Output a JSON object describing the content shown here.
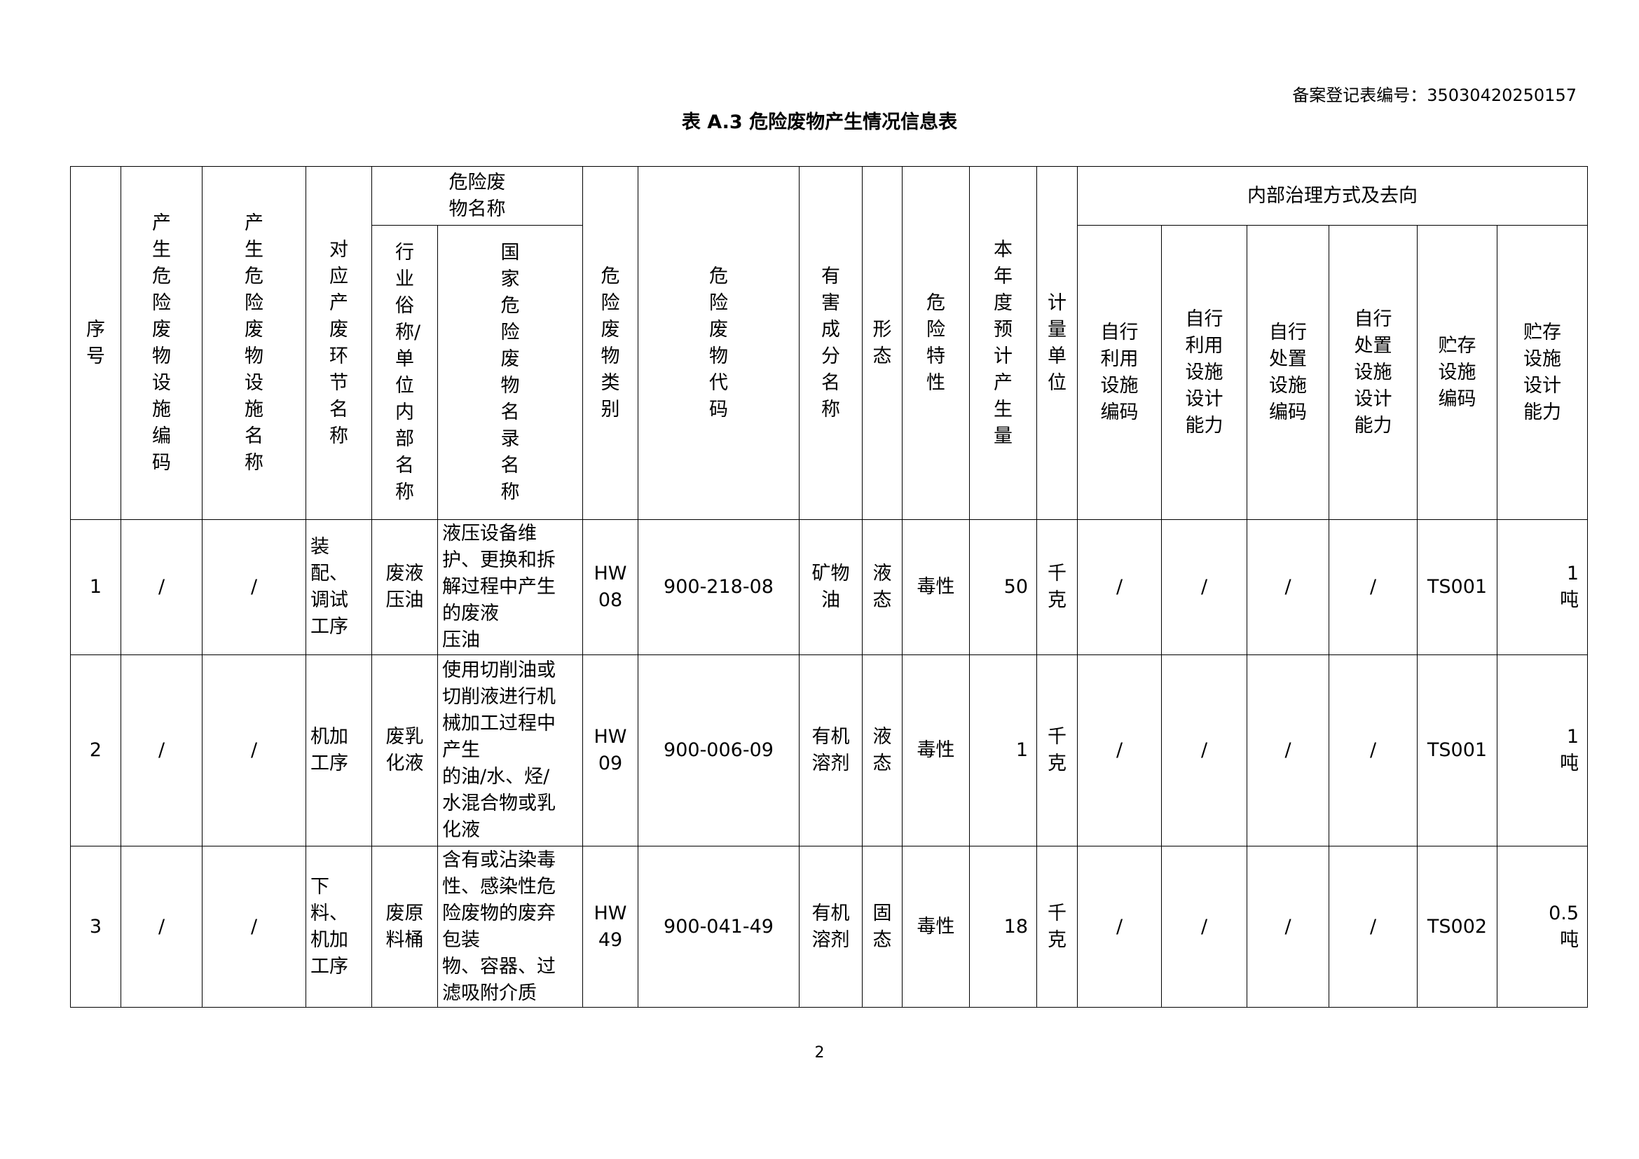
{
  "ref_label": "备案登记表编号：35030420250157",
  "title": "表  A.3  危险废物产生情况信息表",
  "header": {
    "seq": "序号",
    "facility_code": "产生危险废物设施编码",
    "facility_name": "产生危险废物设施名称",
    "process": "对应产废环节名称",
    "waste_name_group": "危险废\n物名称",
    "industry_name": "行业俗称/单位内部名称",
    "national_name": "国家危险废物名录名称",
    "category": "危险废物类别",
    "code": "危险废物代码",
    "harmful": "有害成分名称",
    "form": "形态",
    "property": "危险特性",
    "amount": "本年度预计产生量",
    "unit": "计量单位",
    "internal_group": "内部治理方式及去向",
    "self_use_code": "自行\n利用\n设施\n编码",
    "self_use_capacity": "自行\n利用\n设施\n设计\n能力",
    "self_dispose_code": "自行\n处置\n设施\n编码",
    "self_dispose_capacity": "自行\n处置\n设施\n设计\n能力",
    "storage_code": "贮存\n设施\n编码",
    "storage_capacity": "贮存\n设施\n设计\n能力"
  },
  "rows": [
    {
      "seq": "1",
      "facility_code": "/",
      "facility_name": "/",
      "process": "装\n配、\n调试\n工序",
      "industry_name": "废液\n压油",
      "national_name": "液压设备维\n护、更换和拆\n解过程中产生\n的废液\n压油",
      "category": "HW\n08",
      "code": "900-218-08",
      "harmful": "矿物\n油",
      "form": "液\n态",
      "property": "毒性",
      "amount": "50",
      "unit": "千\n克",
      "self_use_code": "/",
      "self_use_capacity": "/",
      "self_dispose_code": "/",
      "self_dispose_capacity": "/",
      "storage_code": "TS001",
      "storage_capacity": "1\n吨"
    },
    {
      "seq": "2",
      "facility_code": "/",
      "facility_name": "/",
      "process": "机加\n工序",
      "industry_name": "废乳\n化液",
      "national_name": "使用切削油或\n切削液进行机\n械加工过程中\n产生\n的油/水、烃/\n水混合物或乳\n化液",
      "category": "HW\n09",
      "code": "900-006-09",
      "harmful": "有机\n溶剂",
      "form": "液\n态",
      "property": "毒性",
      "amount": "1",
      "unit": "千\n克",
      "self_use_code": "/",
      "self_use_capacity": "/",
      "self_dispose_code": "/",
      "self_dispose_capacity": "/",
      "storage_code": "TS001",
      "storage_capacity": "1\n吨"
    },
    {
      "seq": "3",
      "facility_code": "/",
      "facility_name": "/",
      "process": "下\n料、\n机加\n工序",
      "industry_name": "废原\n料桶",
      "national_name": "含有或沾染毒\n性、感染性危\n险废物的废弃\n包装\n物、容器、过\n滤吸附介质",
      "category": "HW\n49",
      "code": "900-041-49",
      "harmful": "有机\n溶剂",
      "form": "固\n态",
      "property": "毒性",
      "amount": "18",
      "unit": "千\n克",
      "self_use_code": "/",
      "self_use_capacity": "/",
      "self_dispose_code": "/",
      "self_dispose_capacity": "/",
      "storage_code": "TS002",
      "storage_capacity": "0.5\n吨"
    }
  ],
  "page_number": "2"
}
